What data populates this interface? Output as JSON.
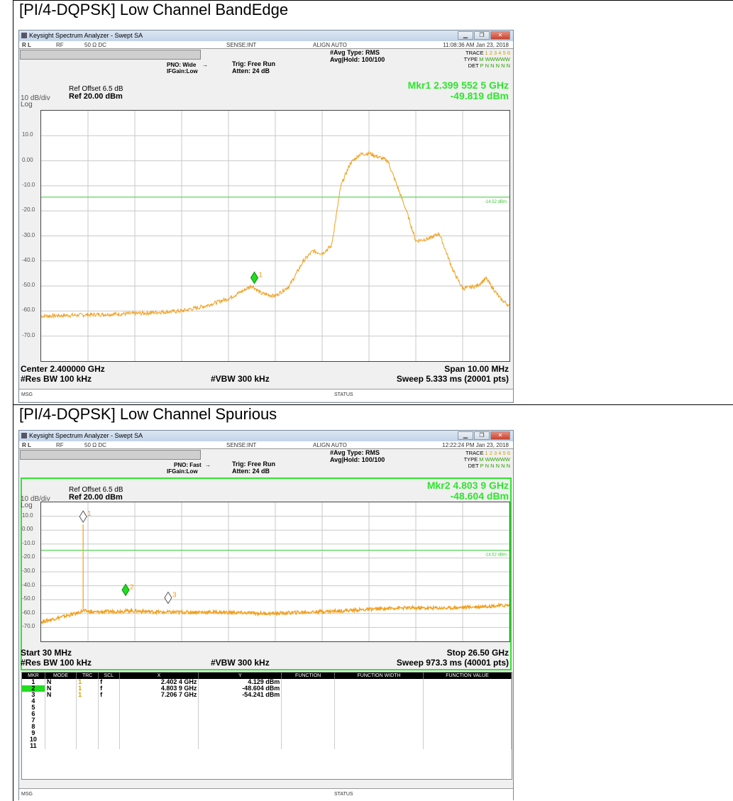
{
  "chart_data": [
    {
      "type": "line",
      "title": "[PI/4-DQPSK] Low Channel BandEdge",
      "app": {
        "name": "Keysight Spectrum Analyzer - Swept SA",
        "rl": "R L",
        "rf": "RF",
        "ohm": "50 Ω  DC",
        "sense": "SENSE:INT",
        "align": "ALIGN AUTO",
        "time": "11:08:36 AM Jan 23, 2018"
      },
      "settings": {
        "pno": "PNO: Wide",
        "ifgain": "IFGain:Low",
        "trig": "Trig: Free Run",
        "atten": "Atten: 24 dB",
        "avgtype": "#Avg Type: RMS",
        "avghold": "Avg|Hold: 100/100"
      },
      "trace_info": {
        "trace_label": "TRACE",
        "trace_nums": "1 2 3 4 5 6",
        "type_label": "TYPE",
        "type_val": "M WWWWW",
        "det_label": "DET",
        "det_val": "P N N N N N"
      },
      "marker": {
        "line1": "Mkr1 2.399 552 5 GHz",
        "line2": "-49.819 dBm"
      },
      "ref": {
        "offset": "Ref Offset 6.5 dB",
        "level": "Ref 20.00 dBm",
        "scale": "10 dB/div",
        "log": "Log"
      },
      "ylim": [
        -80,
        20
      ],
      "ytick_labels": [
        "10.0",
        "0.00",
        "-10.0",
        "-20.0",
        "-30.0",
        "-40.0",
        "-50.0",
        "-60.0",
        "-70.0"
      ],
      "display_line": {
        "value": -14.52,
        "label": "-14.52 dBm"
      },
      "xlim": [
        2395,
        2405
      ],
      "x_unit": "MHz",
      "series": [
        {
          "x": [
            2395.0,
            2396.0,
            2397.0,
            2397.5,
            2398.0,
            2398.5,
            2399.0,
            2399.3,
            2399.5,
            2399.7,
            2400.0,
            2400.3,
            2400.6,
            2400.8,
            2401.0,
            2401.2,
            2401.4,
            2401.6,
            2401.8,
            2402.0,
            2402.4,
            2402.8,
            2403.0,
            2403.3,
            2403.5,
            2403.8,
            2404.0,
            2404.3,
            2404.5,
            2404.8,
            2405.0
          ],
          "y": [
            -62,
            -61.5,
            -61,
            -60.5,
            -60,
            -58,
            -55,
            -52,
            -49.8,
            -53,
            -54,
            -50,
            -40,
            -36,
            -37,
            -34,
            -10,
            -1,
            2.5,
            3,
            0,
            -20,
            -32,
            -31,
            -29,
            -44,
            -51,
            -50,
            -47,
            -55,
            -58
          ]
        }
      ],
      "markers": [
        {
          "id": "1",
          "x": 2399.5525,
          "y": -49.819,
          "active": true
        }
      ],
      "foot": {
        "center": "Center 2.400000 GHz",
        "span": "Span 10.00 MHz",
        "rbw": "#Res BW 100 kHz",
        "vbw": "#VBW 300 kHz",
        "sweep": "Sweep  5.333 ms (20001 pts)"
      },
      "msg": "MSG",
      "status": "STATUS"
    },
    {
      "type": "line",
      "title": "[PI/4-DQPSK] Low Channel Spurious",
      "app": {
        "name": "Keysight Spectrum Analyzer - Swept SA",
        "rl": "R L",
        "rf": "RF",
        "ohm": "50 Ω  DC",
        "sense": "SENSE:INT",
        "align": "ALIGN AUTO",
        "time": "12:22:24 PM Jan 23, 2018"
      },
      "settings": {
        "pno": "PNO: Fast",
        "ifgain": "IFGain:Low",
        "trig": "Trig: Free Run",
        "atten": "Atten: 24 dB",
        "avgtype": "#Avg Type: RMS",
        "avghold": "Avg|Hold: 100/100"
      },
      "trace_info": {
        "trace_label": "TRACE",
        "trace_nums": "1 2 3 4 5 6",
        "type_label": "TYPE",
        "type_val": "M WWWWW",
        "det_label": "DET",
        "det_val": "P N N N N N"
      },
      "marker": {
        "line1": "Mkr2 4.803 9 GHz",
        "line2": "-48.604 dBm"
      },
      "ref": {
        "offset": "Ref Offset 6.5 dB",
        "level": "Ref 20.00 dBm",
        "scale": "10 dB/div",
        "log": "Log"
      },
      "ylim": [
        -80,
        20
      ],
      "ytick_labels": [
        "10.0",
        "0.00",
        "-10.0",
        "-20.0",
        "-30.0",
        "-40.0",
        "-50.0",
        "-60.0",
        "-70.0"
      ],
      "display_line": {
        "value": -14.52,
        "label": "-14.52 dBm"
      },
      "xlim": [
        0.03,
        26.5
      ],
      "x_unit": "GHz",
      "series": [
        {
          "x": [
            0.03,
            1.0,
            2.0,
            2.4,
            3.0,
            5.0,
            7.0,
            10.0,
            13.0,
            15.0,
            17.0,
            20.0,
            23.0,
            26.5
          ],
          "y": [
            -66,
            -63,
            -60,
            -58,
            -59,
            -58,
            -59,
            -59,
            -60,
            -59,
            -58,
            -56,
            -56,
            -54
          ]
        }
      ],
      "spike": {
        "x": 2.4024,
        "y": 4.129
      },
      "markers": [
        {
          "id": "1",
          "x": 2.4024,
          "y": 4.129,
          "active": false
        },
        {
          "id": "2",
          "x": 4.8039,
          "y": -48.604,
          "active": true
        },
        {
          "id": "3",
          "x": 7.2067,
          "y": -54.241,
          "active": false
        }
      ],
      "foot": {
        "center": "Start 30 MHz",
        "span": "Stop 26.50 GHz",
        "rbw": "#Res BW 100 kHz",
        "vbw": "#VBW 300 kHz",
        "sweep": "Sweep  973.3 ms (40001 pts)"
      },
      "table": {
        "headers": [
          "MKR",
          "MODE",
          "TRC",
          "SCL",
          "X",
          "Y",
          "FUNCTION",
          "FUNCTION WIDTH",
          "FUNCTION VALUE"
        ],
        "rows": [
          [
            "1",
            "N",
            "1",
            "f",
            "2.402 4 GHz",
            "4.129 dBm"
          ],
          [
            "2",
            "N",
            "1",
            "f",
            "4.803 9 GHz",
            "-48.604 dBm"
          ],
          [
            "3",
            "N",
            "1",
            "f",
            "7.206 7 GHz",
            "-54.241 dBm"
          ],
          [
            "4",
            "",
            "",
            "",
            "",
            ""
          ],
          [
            "5",
            "",
            "",
            "",
            "",
            ""
          ],
          [
            "6",
            "",
            "",
            "",
            "",
            ""
          ],
          [
            "7",
            "",
            "",
            "",
            "",
            ""
          ],
          [
            "8",
            "",
            "",
            "",
            "",
            ""
          ],
          [
            "9",
            "",
            "",
            "",
            "",
            ""
          ],
          [
            "10",
            "",
            "",
            "",
            "",
            ""
          ],
          [
            "11",
            "",
            "",
            "",
            "",
            ""
          ]
        ]
      },
      "msg": "MSG",
      "status": "STATUS"
    }
  ]
}
